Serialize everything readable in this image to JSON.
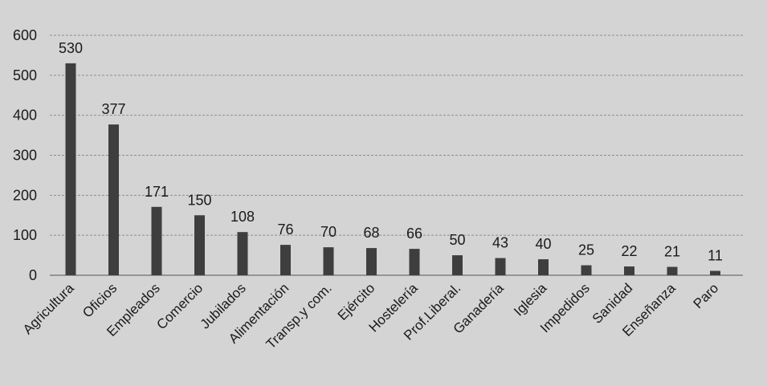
{
  "chart_data": {
    "type": "bar",
    "categories": [
      "Agricultura",
      "Oficios",
      "Empleados",
      "Comercio",
      "Jubilados",
      "Alimentación",
      "Transp.y com.",
      "Ejército",
      "Hostelería",
      "Prof.Liberal.",
      "Ganadería",
      "Iglesia",
      "Impedidos",
      "Sanidad",
      "Enseñanza",
      "Paro"
    ],
    "values": [
      530,
      377,
      171,
      150,
      108,
      76,
      70,
      68,
      66,
      50,
      43,
      40,
      25,
      22,
      21,
      11
    ],
    "title": "",
    "xlabel": "",
    "ylabel": "",
    "ylim": [
      0,
      600
    ],
    "yticks": [
      0,
      100,
      200,
      300,
      400,
      500,
      600
    ],
    "grid": true,
    "data_labels": true,
    "colors": {
      "bar": "#3e3e3e",
      "background": "#d4d4d4",
      "grid": "#8e8e8e"
    }
  }
}
